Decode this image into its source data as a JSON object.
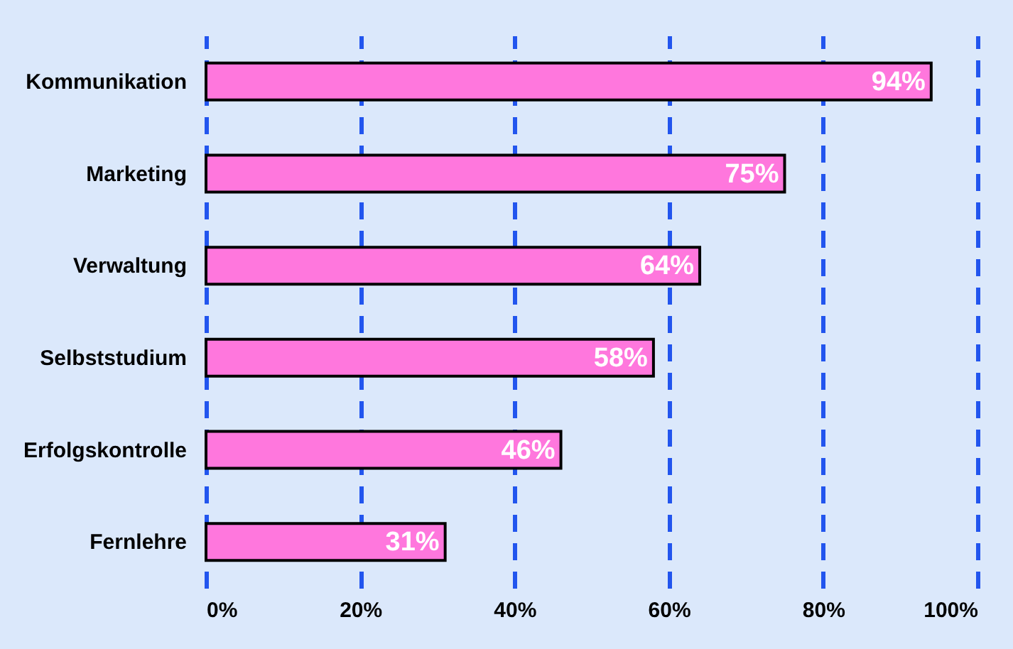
{
  "chart_data": {
    "type": "bar",
    "orientation": "horizontal",
    "categories": [
      "Kommunikation",
      "Marketing",
      "Verwaltung",
      "Selbststudium",
      "Erfolgskontrolle",
      "Fernlehre"
    ],
    "values": [
      94,
      75,
      64,
      58,
      46,
      31
    ],
    "value_labels": [
      "94%",
      "75%",
      "64%",
      "58%",
      "46%",
      "31%"
    ],
    "color": "#ff77dd",
    "xlim": [
      0,
      100
    ],
    "xticks": [
      {
        "value": 0,
        "label": "0%"
      },
      {
        "value": 20,
        "label": "20%"
      },
      {
        "value": 40,
        "label": "40%"
      },
      {
        "value": 60,
        "label": "60%"
      },
      {
        "value": 80,
        "label": "80%"
      },
      {
        "value": 100,
        "label": "100%"
      }
    ],
    "grid": "x"
  }
}
